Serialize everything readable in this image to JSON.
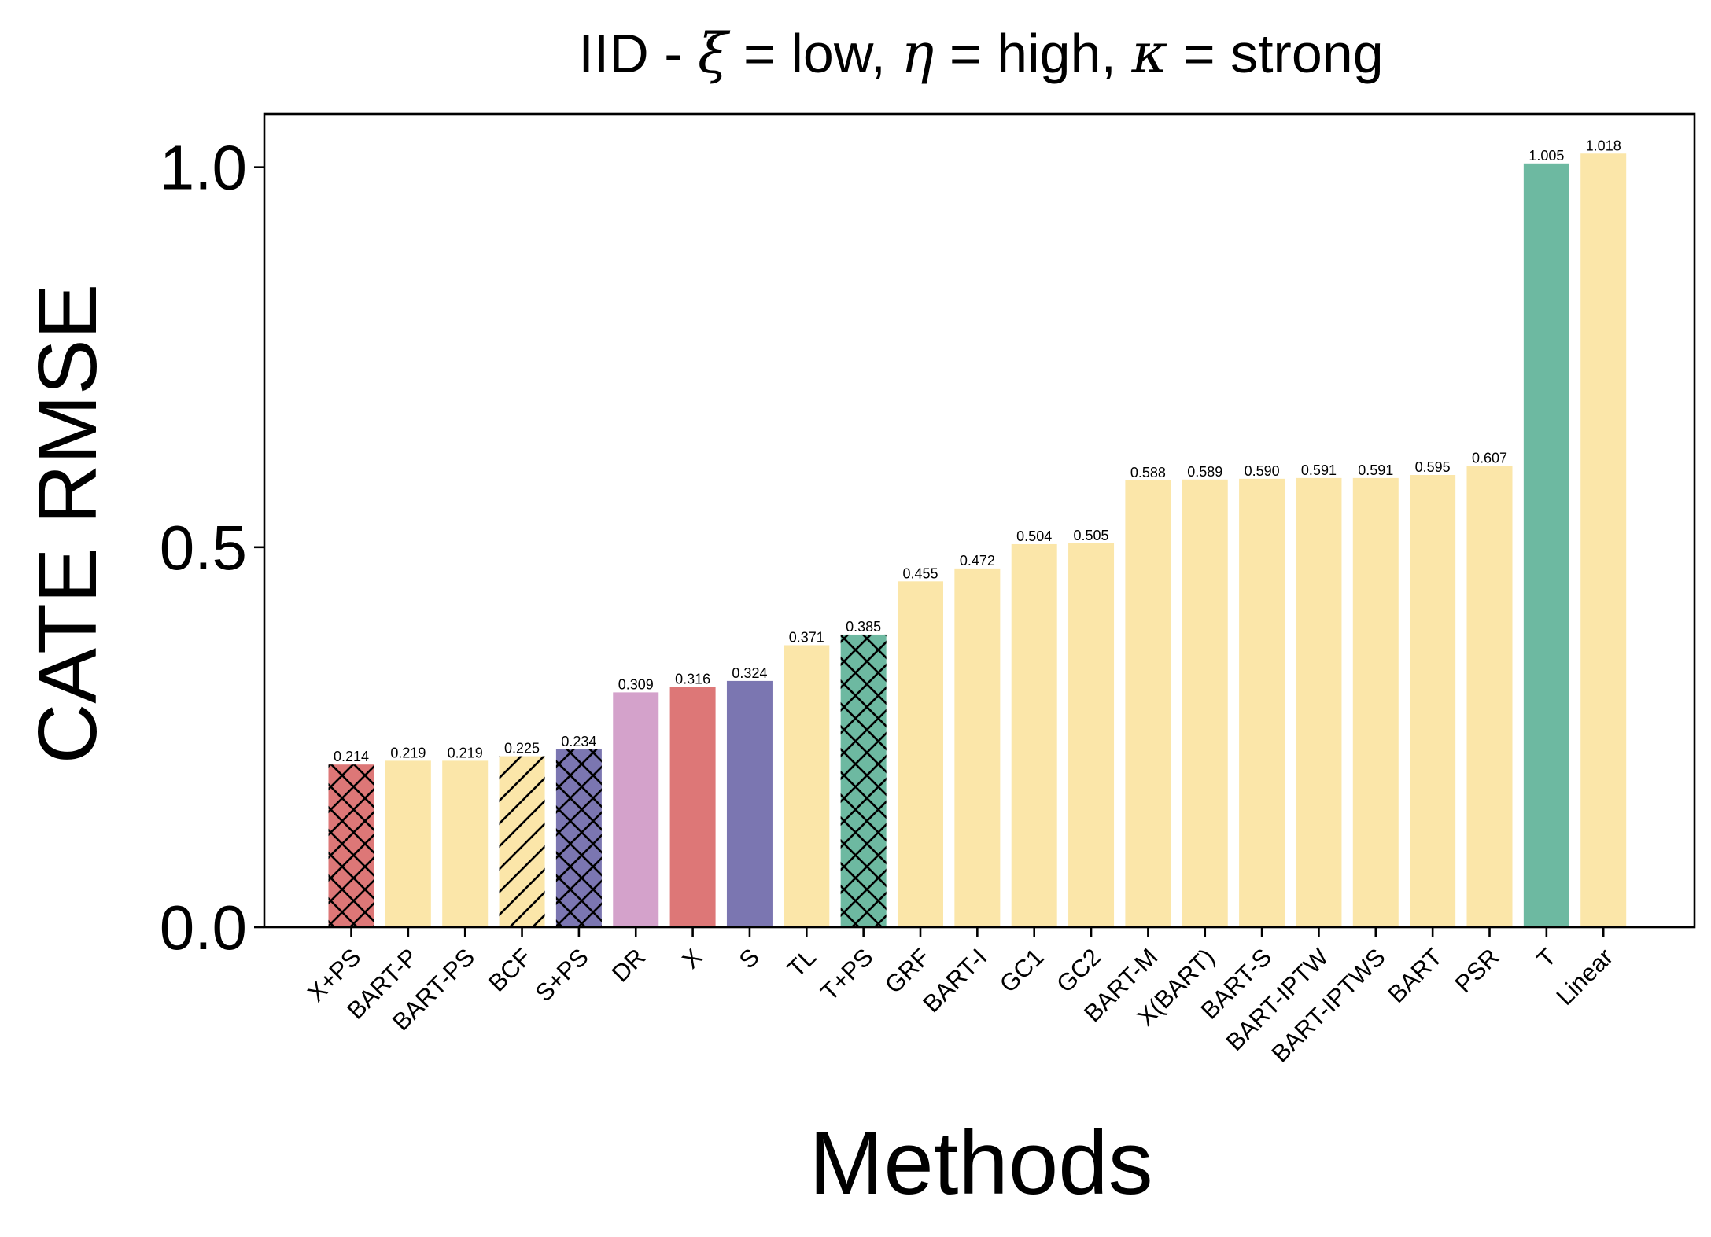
{
  "chart_data": {
    "type": "bar",
    "title_parts": {
      "prefix": "IID - ",
      "xi_symbol": "ξ",
      "xi_value": " = low, ",
      "eta_symbol": "η",
      "eta_value": " = high, ",
      "kappa_symbol": "κ",
      "kappa_value": " = strong"
    },
    "xlabel": "Methods",
    "ylabel": "CATE RMSE",
    "ylim": [
      0,
      1.07
    ],
    "yticks": [
      0.0,
      0.5,
      1.0
    ],
    "ytick_labels": [
      "0.0",
      "0.5",
      "1.0"
    ],
    "colors": {
      "red": "#dd7777",
      "yellow": "#fbe6a9",
      "purple": "#7b76b1",
      "pink": "#d4a2cb",
      "green": "#6db9a1"
    },
    "categories": [
      "X+PS",
      "BART-P",
      "BART-PS",
      "BCF",
      "S+PS",
      "DR",
      "X",
      "S",
      "TL",
      "T+PS",
      "GRF",
      "BART-I",
      "GC1",
      "GC2",
      "BART-M",
      "X(BART)",
      "BART-S",
      "BART-IPTW",
      "BART-IPTWS",
      "BART",
      "PSR",
      "T",
      "Linear"
    ],
    "values": [
      0.214,
      0.219,
      0.219,
      0.225,
      0.234,
      0.309,
      0.316,
      0.324,
      0.371,
      0.385,
      0.455,
      0.472,
      0.504,
      0.505,
      0.588,
      0.589,
      0.59,
      0.591,
      0.591,
      0.595,
      0.607,
      1.005,
      1.018
    ],
    "value_labels": [
      "0.214",
      "0.219",
      "0.219",
      "0.225",
      "0.234",
      "0.309",
      "0.316",
      "0.324",
      "0.371",
      "0.385",
      "0.455",
      "0.472",
      "0.504",
      "0.505",
      "0.588",
      "0.589",
      "0.590",
      "0.591",
      "0.591",
      "0.595",
      "0.607",
      "1.005",
      "1.018"
    ],
    "bar_colors": [
      "red",
      "yellow",
      "yellow",
      "yellow",
      "purple",
      "pink",
      "red",
      "purple",
      "yellow",
      "green",
      "yellow",
      "yellow",
      "yellow",
      "yellow",
      "yellow",
      "yellow",
      "yellow",
      "yellow",
      "yellow",
      "yellow",
      "yellow",
      "green",
      "yellow"
    ],
    "hatches": [
      "cross",
      "none",
      "none",
      "diagonal",
      "cross",
      "none",
      "none",
      "none",
      "none",
      "cross",
      "none",
      "none",
      "none",
      "none",
      "none",
      "none",
      "none",
      "none",
      "none",
      "none",
      "none",
      "none",
      "none"
    ]
  }
}
